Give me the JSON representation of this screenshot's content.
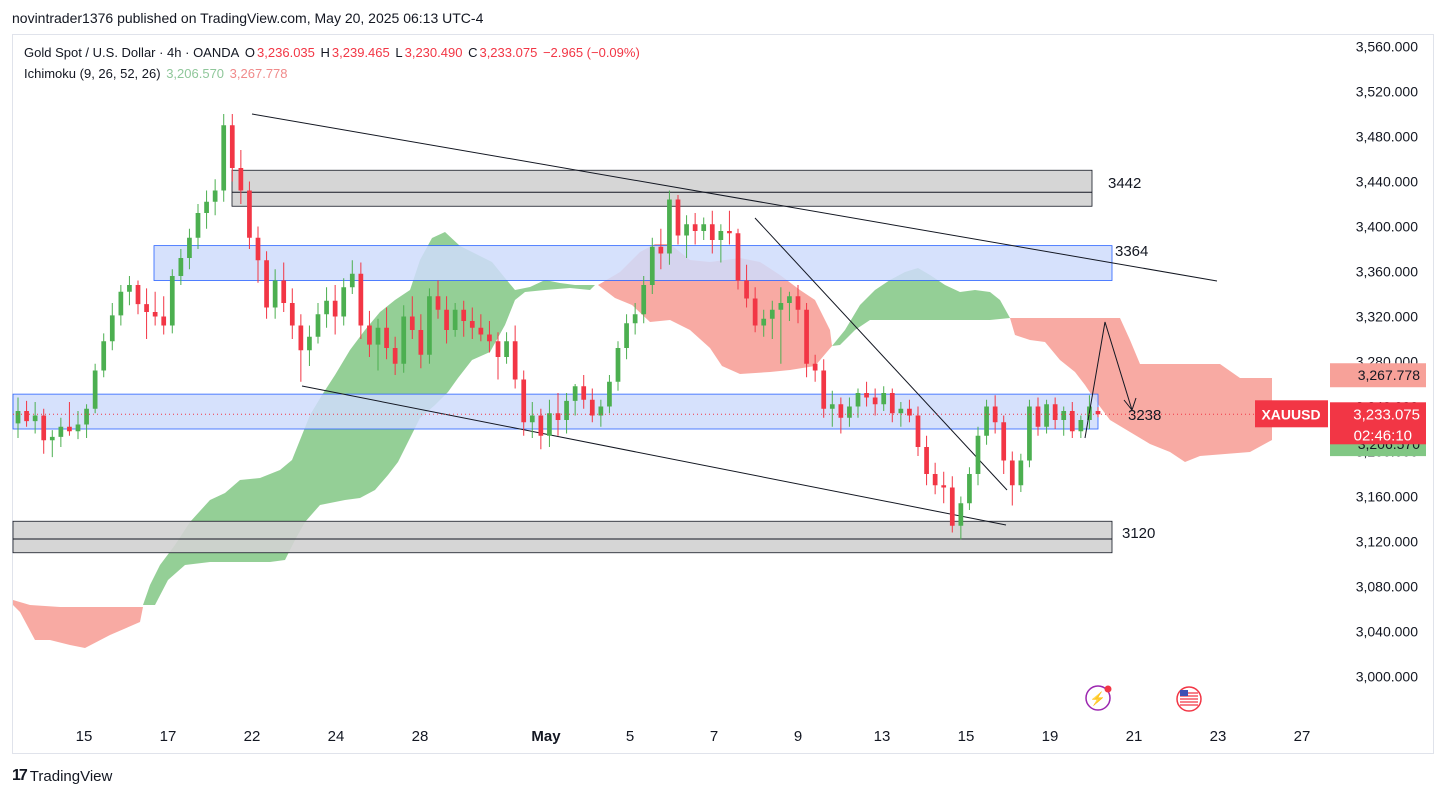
{
  "caption": "novintrader1376 published on TradingView.com, May 20, 2025 06:13 UTC-4",
  "legend": {
    "symbol": "Gold Spot / U.S. Dollar · 4h · OANDA",
    "o_label": "O",
    "o": "3,236.035",
    "h_label": "H",
    "h": "3,239.465",
    "l_label": "L",
    "l": "3,230.490",
    "c_label": "C",
    "c": "3,233.075",
    "change": "−2.965 (−0.09%)",
    "ichimoku": "Ichimoku (9, 26, 52, 26)",
    "ichi_a": "3,206.570",
    "ichi_b": "3,267.778"
  },
  "footer": {
    "logo": "17",
    "brand": "TradingView"
  },
  "colors": {
    "up": "#26a69a",
    "up_candle": "#4caf50",
    "down": "#f23645",
    "cloud_green": "#81c784",
    "cloud_red": "#f7a199",
    "zone_blue_fill": "#cfdcfb",
    "zone_blue_stroke": "#2962ff",
    "zone_gray_fill": "#d1d1d1",
    "price_red": "#f23645",
    "ichi_green_label": "#81c784",
    "ichi_red_label": "#f7a199"
  },
  "chart_data": {
    "type": "candlestick",
    "symbol": "XAUUSD",
    "timeframe": "4h",
    "ylim": [
      2960,
      3580
    ],
    "y_ticks": [
      "3,560.000",
      "3,520.000",
      "3,480.000",
      "3,440.000",
      "3,400.000",
      "3,360.000",
      "3,320.000",
      "3,280.000",
      "3,240.000",
      "3,200.000",
      "3,160.000",
      "3,120.000",
      "3,080.000",
      "3,040.000",
      "3,000.000"
    ],
    "x_ticks": [
      "15",
      "17",
      "22",
      "24",
      "28",
      "May",
      "5",
      "7",
      "9",
      "13",
      "15",
      "19",
      "21",
      "23",
      "27"
    ],
    "current_price": "3,233.075",
    "countdown": "02:46:10",
    "price_tag": "XAUUSD",
    "ichimoku_labels": {
      "span_b": "3,267.778",
      "span_a": "3,206.570"
    },
    "zones": [
      {
        "label": "3442",
        "top": 3450,
        "bottom": 3418,
        "kind": "gray"
      },
      {
        "label": "3364",
        "top": 3383,
        "bottom": 3352,
        "kind": "blue"
      },
      {
        "label": "",
        "top": 3251,
        "bottom": 3220,
        "kind": "blue"
      },
      {
        "label": "3120",
        "top": 3138,
        "bottom": 3110,
        "kind": "gray"
      }
    ],
    "annotations": [
      "3442",
      "3364",
      "3238",
      "3120"
    ],
    "candles_ohlc": [
      [
        3225,
        3248,
        3212,
        3236
      ],
      [
        3236,
        3245,
        3222,
        3227
      ],
      [
        3227,
        3244,
        3216,
        3232
      ],
      [
        3232,
        3238,
        3198,
        3210
      ],
      [
        3210,
        3219,
        3195,
        3213
      ],
      [
        3213,
        3230,
        3204,
        3222
      ],
      [
        3222,
        3244,
        3214,
        3218
      ],
      [
        3218,
        3236,
        3211,
        3224
      ],
      [
        3224,
        3242,
        3212,
        3238
      ],
      [
        3238,
        3278,
        3234,
        3272
      ],
      [
        3272,
        3305,
        3266,
        3298
      ],
      [
        3298,
        3332,
        3290,
        3321
      ],
      [
        3321,
        3348,
        3312,
        3342
      ],
      [
        3342,
        3356,
        3330,
        3348
      ],
      [
        3348,
        3352,
        3322,
        3331
      ],
      [
        3331,
        3345,
        3300,
        3324
      ],
      [
        3324,
        3342,
        3312,
        3320
      ],
      [
        3320,
        3338,
        3304,
        3312
      ],
      [
        3312,
        3362,
        3305,
        3356
      ],
      [
        3356,
        3380,
        3348,
        3372
      ],
      [
        3372,
        3398,
        3362,
        3390
      ],
      [
        3390,
        3420,
        3380,
        3412
      ],
      [
        3412,
        3432,
        3398,
        3422
      ],
      [
        3422,
        3442,
        3410,
        3432
      ],
      [
        3432,
        3500,
        3422,
        3490
      ],
      [
        3490,
        3500,
        3440,
        3452
      ],
      [
        3452,
        3468,
        3420,
        3432
      ],
      [
        3432,
        3440,
        3380,
        3390
      ],
      [
        3390,
        3400,
        3350,
        3370
      ],
      [
        3370,
        3378,
        3318,
        3328
      ],
      [
        3328,
        3362,
        3318,
        3352
      ],
      [
        3352,
        3368,
        3324,
        3332
      ],
      [
        3332,
        3345,
        3300,
        3312
      ],
      [
        3312,
        3322,
        3262,
        3290
      ],
      [
        3290,
        3312,
        3276,
        3302
      ],
      [
        3302,
        3332,
        3296,
        3322
      ],
      [
        3322,
        3346,
        3310,
        3334
      ],
      [
        3334,
        3348,
        3304,
        3320
      ],
      [
        3320,
        3354,
        3312,
        3346
      ],
      [
        3346,
        3370,
        3340,
        3358
      ],
      [
        3358,
        3368,
        3300,
        3312
      ],
      [
        3312,
        3325,
        3284,
        3295
      ],
      [
        3295,
        3318,
        3272,
        3310
      ],
      [
        3310,
        3328,
        3282,
        3292
      ],
      [
        3292,
        3302,
        3268,
        3278
      ],
      [
        3278,
        3330,
        3270,
        3320
      ],
      [
        3320,
        3338,
        3300,
        3308
      ],
      [
        3308,
        3322,
        3274,
        3286
      ],
      [
        3286,
        3345,
        3278,
        3338
      ],
      [
        3338,
        3352,
        3318,
        3326
      ],
      [
        3326,
        3338,
        3296,
        3308
      ],
      [
        3308,
        3332,
        3302,
        3326
      ],
      [
        3326,
        3334,
        3302,
        3316
      ],
      [
        3316,
        3328,
        3300,
        3310
      ],
      [
        3310,
        3322,
        3298,
        3304
      ],
      [
        3304,
        3316,
        3288,
        3298
      ],
      [
        3298,
        3306,
        3264,
        3284
      ],
      [
        3284,
        3306,
        3278,
        3298
      ],
      [
        3298,
        3312,
        3256,
        3264
      ],
      [
        3264,
        3272,
        3214,
        3226
      ],
      [
        3226,
        3244,
        3212,
        3232
      ],
      [
        3232,
        3238,
        3202,
        3214
      ],
      [
        3214,
        3246,
        3204,
        3234
      ],
      [
        3234,
        3252,
        3214,
        3228
      ],
      [
        3228,
        3252,
        3216,
        3245
      ],
      [
        3245,
        3260,
        3232,
        3258
      ],
      [
        3258,
        3268,
        3238,
        3246
      ],
      [
        3246,
        3256,
        3226,
        3232
      ],
      [
        3232,
        3246,
        3222,
        3240
      ],
      [
        3240,
        3268,
        3234,
        3262
      ],
      [
        3262,
        3298,
        3254,
        3292
      ],
      [
        3292,
        3322,
        3282,
        3314
      ],
      [
        3314,
        3332,
        3304,
        3322
      ],
      [
        3322,
        3356,
        3314,
        3348
      ],
      [
        3348,
        3390,
        3340,
        3382
      ],
      [
        3382,
        3398,
        3362,
        3376
      ],
      [
        3376,
        3432,
        3366,
        3424
      ],
      [
        3424,
        3428,
        3384,
        3392
      ],
      [
        3392,
        3410,
        3372,
        3402
      ],
      [
        3402,
        3412,
        3384,
        3396
      ],
      [
        3396,
        3408,
        3388,
        3402
      ],
      [
        3402,
        3414,
        3376,
        3388
      ],
      [
        3388,
        3402,
        3368,
        3396
      ],
      [
        3396,
        3414,
        3384,
        3394
      ],
      [
        3394,
        3398,
        3344,
        3352
      ],
      [
        3352,
        3366,
        3328,
        3336
      ],
      [
        3336,
        3346,
        3306,
        3312
      ],
      [
        3312,
        3326,
        3302,
        3318
      ],
      [
        3318,
        3334,
        3300,
        3326
      ],
      [
        3326,
        3346,
        3278,
        3332
      ],
      [
        3332,
        3342,
        3316,
        3338
      ],
      [
        3338,
        3348,
        3314,
        3326
      ],
      [
        3326,
        3332,
        3266,
        3278
      ],
      [
        3278,
        3286,
        3262,
        3272
      ],
      [
        3272,
        3282,
        3230,
        3238
      ],
      [
        3238,
        3254,
        3222,
        3242
      ],
      [
        3242,
        3248,
        3216,
        3230
      ],
      [
        3230,
        3248,
        3222,
        3240
      ],
      [
        3240,
        3256,
        3230,
        3252
      ],
      [
        3252,
        3262,
        3240,
        3248
      ],
      [
        3248,
        3256,
        3232,
        3242
      ],
      [
        3242,
        3258,
        3236,
        3252
      ],
      [
        3252,
        3256,
        3226,
        3234
      ],
      [
        3234,
        3244,
        3222,
        3238
      ],
      [
        3238,
        3246,
        3226,
        3232
      ],
      [
        3232,
        3240,
        3196,
        3204
      ],
      [
        3204,
        3214,
        3170,
        3180
      ],
      [
        3180,
        3190,
        3162,
        3170
      ],
      [
        3170,
        3182,
        3154,
        3168
      ],
      [
        3168,
        3178,
        3128,
        3134
      ],
      [
        3134,
        3160,
        3122,
        3154
      ],
      [
        3154,
        3186,
        3148,
        3180
      ],
      [
        3180,
        3222,
        3170,
        3214
      ],
      [
        3214,
        3246,
        3206,
        3240
      ],
      [
        3240,
        3250,
        3216,
        3226
      ],
      [
        3226,
        3232,
        3180,
        3192
      ],
      [
        3192,
        3200,
        3152,
        3170
      ],
      [
        3170,
        3198,
        3164,
        3192
      ],
      [
        3192,
        3246,
        3186,
        3240
      ],
      [
        3240,
        3248,
        3214,
        3222
      ],
      [
        3222,
        3246,
        3216,
        3242
      ],
      [
        3242,
        3248,
        3220,
        3228
      ],
      [
        3228,
        3240,
        3214,
        3236
      ],
      [
        3236,
        3244,
        3212,
        3218
      ],
      [
        3218,
        3232,
        3212,
        3228
      ],
      [
        3228,
        3250,
        3220,
        3240
      ],
      [
        3236,
        3239.465,
        3230.49,
        3233.075
      ]
    ]
  }
}
